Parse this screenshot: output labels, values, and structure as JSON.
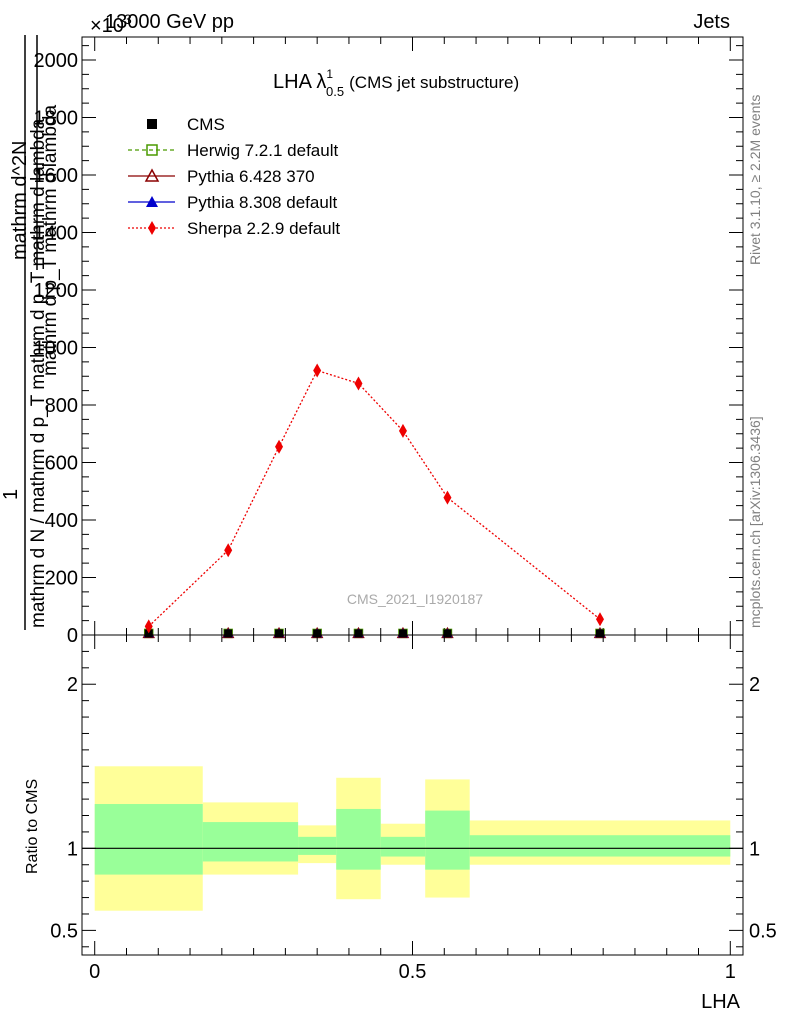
{
  "header": {
    "left_text": "13000 GeV pp",
    "right_text": "Jets",
    "exponent_text": "×10",
    "exponent_power": "3"
  },
  "chart_data": [
    {
      "type": "line",
      "panel": "main",
      "title_main": "LHA λ",
      "title_super": "1",
      "title_sub": "0.5",
      "title_note": "(CMS jet substructure)",
      "ylabel_numerator": "1",
      "ylabel_denominator": "mathrm d N / mathrm d p_T mathrm d p_T mathrm d lambda",
      "ylabel_top": "mathrm d^2N",
      "ylabel_top_frac": "mathrm d p_T mathrm d lambda",
      "xlim": [
        -0.02,
        1.02
      ],
      "ylim": [
        0,
        2080
      ],
      "y_ticks": [
        0,
        200,
        400,
        600,
        800,
        1000,
        1200,
        1400,
        1600,
        1800,
        2000
      ],
      "y_tick_labels": [
        "0",
        "200",
        "400",
        "600",
        "800",
        "1000",
        "1200",
        "1400",
        "1600",
        "1800",
        "2000"
      ],
      "watermark": "CMS_2021_I1920187",
      "right_label_top": "Rivet 3.1.10, ≥ 2.2M events",
      "right_label_bottom": "mcplots.cern.ch [arXiv:1306.3436]",
      "legend_position": "top-left",
      "series": [
        {
          "name": "CMS",
          "color": "#000000",
          "marker": "filled-square",
          "line": "none",
          "x": [
            0.085,
            0.21,
            0.29,
            0.35,
            0.415,
            0.485,
            0.555,
            0.795
          ],
          "y": [
            2,
            2,
            2,
            2,
            2,
            2,
            2,
            2
          ]
        },
        {
          "name": "Herwig 7.2.1 default",
          "color": "#4a9a00",
          "marker": "open-square",
          "line": "dashed",
          "x": [
            0.085,
            0.21,
            0.29,
            0.35,
            0.415,
            0.485,
            0.555,
            0.795
          ],
          "y": [
            2,
            2,
            2,
            2,
            2,
            2,
            2,
            2
          ]
        },
        {
          "name": "Pythia 6.428 370",
          "color": "#8b0000",
          "marker": "open-triangle",
          "line": "solid",
          "x": [
            0.085,
            0.21,
            0.29,
            0.35,
            0.415,
            0.485,
            0.555,
            0.795
          ],
          "y": [
            2,
            2,
            2,
            2,
            2,
            2,
            2,
            2
          ]
        },
        {
          "name": "Pythia 8.308 default",
          "color": "#0000cc",
          "marker": "filled-triangle",
          "line": "solid",
          "x": [
            0.085,
            0.21,
            0.29,
            0.35,
            0.415,
            0.485,
            0.555,
            0.795
          ],
          "y": [
            2,
            2,
            2,
            2,
            2,
            2,
            2,
            2
          ]
        },
        {
          "name": "Sherpa 2.2.9 default",
          "color": "#ee0000",
          "marker": "filled-diamond",
          "line": "dotted",
          "x": [
            0.085,
            0.21,
            0.29,
            0.35,
            0.415,
            0.485,
            0.555,
            0.795
          ],
          "y": [
            30,
            295,
            655,
            920,
            875,
            710,
            478,
            55
          ],
          "yerr": [
            5,
            10,
            15,
            20,
            18,
            15,
            10,
            5
          ]
        }
      ]
    },
    {
      "type": "area",
      "panel": "ratio",
      "xlabel": "LHA",
      "ylabel": "Ratio to CMS",
      "xlim": [
        -0.02,
        1.02
      ],
      "ylim": [
        0.35,
        2.3
      ],
      "x_ticks": [
        0,
        0.5,
        1
      ],
      "x_tick_labels": [
        "0",
        "0.5",
        "1"
      ],
      "y_ticks": [
        0.5,
        1,
        2
      ],
      "y_tick_labels": [
        "0.5",
        "1",
        "2"
      ],
      "reference_line": 1,
      "band_colors": {
        "outer": "#ffff99",
        "inner": "#99ff99"
      },
      "bins": [
        {
          "x0": 0.0,
          "x1": 0.17,
          "outer": [
            0.62,
            1.5
          ],
          "inner": [
            0.84,
            1.27
          ]
        },
        {
          "x0": 0.17,
          "x1": 0.32,
          "outer": [
            0.84,
            1.28
          ],
          "inner": [
            0.92,
            1.16
          ]
        },
        {
          "x0": 0.32,
          "x1": 0.38,
          "outer": [
            0.91,
            1.14
          ],
          "inner": [
            0.96,
            1.07
          ]
        },
        {
          "x0": 0.38,
          "x1": 0.45,
          "outer": [
            0.69,
            1.43
          ],
          "inner": [
            0.87,
            1.24
          ]
        },
        {
          "x0": 0.45,
          "x1": 0.52,
          "outer": [
            0.9,
            1.15
          ],
          "inner": [
            0.95,
            1.07
          ]
        },
        {
          "x0": 0.52,
          "x1": 0.59,
          "outer": [
            0.7,
            1.42
          ],
          "inner": [
            0.87,
            1.23
          ]
        },
        {
          "x0": 0.59,
          "x1": 1.0,
          "outer": [
            0.9,
            1.17
          ],
          "inner": [
            0.95,
            1.08
          ]
        }
      ]
    }
  ]
}
